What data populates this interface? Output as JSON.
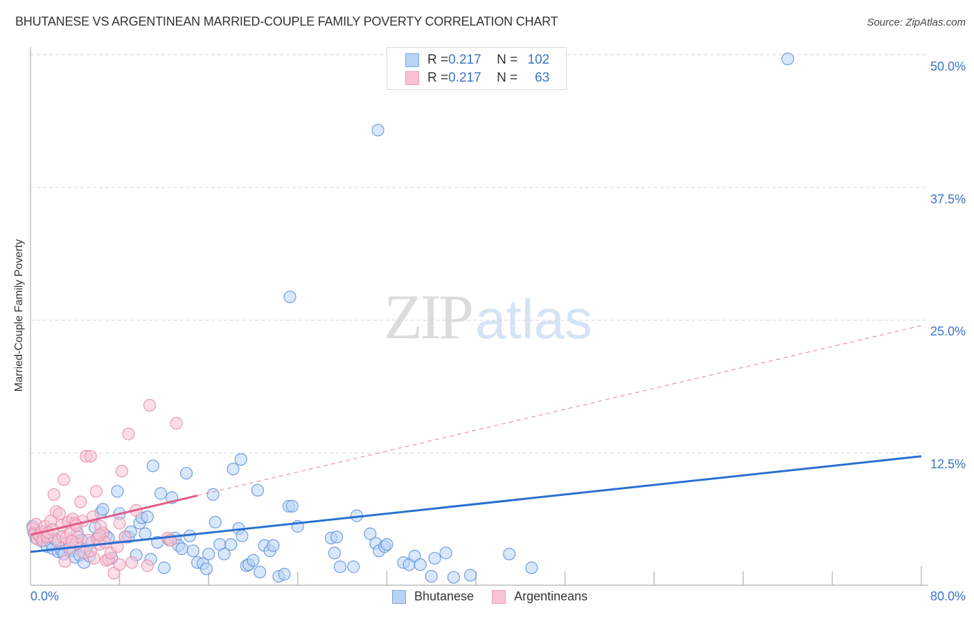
{
  "header": {
    "title": "BHUTANESE VS ARGENTINEAN MARRIED-COUPLE FAMILY POVERTY CORRELATION CHART",
    "source": "Source: ZipAtlas.com"
  },
  "watermark": {
    "zip": "ZIP",
    "atlas": "atlas"
  },
  "colors": {
    "bhutanese_fill": "#b8d3f5",
    "bhutanese_stroke": "#5b8fd9",
    "bhutanese_line": "#2a6fd0",
    "argentinean_fill": "#f8c3d3",
    "argentinean_stroke": "#e88aa6",
    "argentinean_line": "#e05c88",
    "tick_label": "#3b73c8",
    "grid": "#d6d6d6"
  },
  "legend_top": {
    "rows": [
      {
        "series": "Bhutanese",
        "r_label": "R = ",
        "r_value": "0.217",
        "n_label": "N = ",
        "n_value": "102"
      },
      {
        "series": "Argentineans",
        "r_label": "R = ",
        "r_value": "0.217",
        "n_label": "N = ",
        "n_value": "63"
      }
    ]
  },
  "legend_bottom": {
    "items": [
      {
        "label": "Bhutanese"
      },
      {
        "label": "Argentineans"
      }
    ]
  },
  "axes": {
    "y_label": "Married-Couple Family Poverty",
    "y_ticks": [
      "50.0%",
      "37.5%",
      "25.0%",
      "12.5%"
    ],
    "x_ticks": [
      "0.0%",
      "80.0%"
    ]
  },
  "chart_data": {
    "type": "scatter",
    "title": "BHUTANESE VS ARGENTINEAN MARRIED-COUPLE FAMILY POVERTY CORRELATION CHART",
    "xlabel": "",
    "ylabel": "Married-Couple Family Poverty",
    "xlim": [
      0,
      80
    ],
    "ylim": [
      0,
      50
    ],
    "x_tick_labels": [
      "0.0%",
      "80.0%"
    ],
    "y_tick_labels": [
      "12.5%",
      "25.0%",
      "37.5%",
      "50.0%"
    ],
    "grid": "horizontal dashed",
    "legend_position": "top-center and bottom",
    "series": [
      {
        "name": "Bhutanese",
        "R": 0.217,
        "N": 102,
        "trend": {
          "x": [
            0,
            80
          ],
          "y": [
            3.2,
            12.2
          ],
          "style": "solid"
        },
        "points": [
          [
            0.2,
            5.6
          ],
          [
            0.3,
            5.0
          ],
          [
            0.5,
            4.5
          ],
          [
            0.8,
            4.9
          ],
          [
            1.0,
            4.2
          ],
          [
            1.2,
            5.1
          ],
          [
            1.5,
            3.7
          ],
          [
            1.8,
            4.0
          ],
          [
            2.0,
            3.5
          ],
          [
            2.2,
            4.4
          ],
          [
            2.5,
            3.2
          ],
          [
            2.8,
            3.3
          ],
          [
            3.0,
            3.0
          ],
          [
            3.2,
            4.0
          ],
          [
            3.5,
            3.6
          ],
          [
            3.8,
            3.3
          ],
          [
            4.0,
            2.7
          ],
          [
            4.2,
            5.0
          ],
          [
            4.4,
            2.9
          ],
          [
            4.6,
            4.3
          ],
          [
            4.8,
            2.2
          ],
          [
            5.0,
            3.5
          ],
          [
            5.3,
            2.8
          ],
          [
            5.5,
            4.1
          ],
          [
            5.8,
            5.5
          ],
          [
            6.0,
            4.5
          ],
          [
            6.3,
            6.9
          ],
          [
            6.5,
            7.2
          ],
          [
            6.8,
            4.7
          ],
          [
            7.0,
            4.5
          ],
          [
            7.3,
            2.6
          ],
          [
            7.8,
            8.9
          ],
          [
            8.0,
            6.8
          ],
          [
            8.5,
            4.6
          ],
          [
            8.8,
            4.6
          ],
          [
            9.0,
            5.1
          ],
          [
            9.5,
            2.9
          ],
          [
            9.8,
            5.9
          ],
          [
            10.0,
            6.4
          ],
          [
            10.3,
            4.9
          ],
          [
            10.5,
            6.5
          ],
          [
            10.8,
            2.5
          ],
          [
            11.0,
            11.3
          ],
          [
            11.4,
            4.1
          ],
          [
            11.7,
            8.7
          ],
          [
            12.0,
            1.7
          ],
          [
            12.5,
            4.3
          ],
          [
            12.7,
            8.3
          ],
          [
            13.0,
            4.5
          ],
          [
            13.3,
            3.8
          ],
          [
            13.6,
            3.5
          ],
          [
            14.0,
            10.6
          ],
          [
            14.3,
            4.7
          ],
          [
            14.6,
            3.3
          ],
          [
            15.0,
            2.2
          ],
          [
            15.5,
            2.1
          ],
          [
            15.8,
            1.6
          ],
          [
            16.0,
            3.0
          ],
          [
            16.4,
            8.6
          ],
          [
            16.6,
            6.0
          ],
          [
            17.0,
            3.9
          ],
          [
            17.4,
            3.0
          ],
          [
            18.0,
            3.9
          ],
          [
            18.2,
            11.0
          ],
          [
            18.7,
            5.4
          ],
          [
            18.9,
            11.9
          ],
          [
            19.0,
            4.7
          ],
          [
            19.4,
            1.9
          ],
          [
            19.6,
            2.0
          ],
          [
            20.0,
            2.4
          ],
          [
            20.4,
            9.0
          ],
          [
            20.6,
            1.3
          ],
          [
            21.0,
            3.8
          ],
          [
            21.5,
            3.3
          ],
          [
            21.8,
            3.8
          ],
          [
            22.3,
            0.9
          ],
          [
            22.8,
            1.1
          ],
          [
            23.2,
            7.5
          ],
          [
            23.5,
            7.5
          ],
          [
            24.0,
            5.6
          ],
          [
            23.3,
            27.2
          ],
          [
            27.0,
            4.5
          ],
          [
            27.3,
            3.1
          ],
          [
            27.5,
            4.6
          ],
          [
            27.8,
            1.8
          ],
          [
            29.0,
            1.8
          ],
          [
            29.3,
            6.6
          ],
          [
            30.5,
            4.9
          ],
          [
            31.0,
            4.0
          ],
          [
            31.3,
            3.3
          ],
          [
            31.8,
            3.7
          ],
          [
            32.0,
            3.9
          ],
          [
            31.2,
            42.9
          ],
          [
            33.5,
            2.2
          ],
          [
            34.0,
            2.0
          ],
          [
            34.5,
            2.8
          ],
          [
            35.0,
            2.0
          ],
          [
            36.3,
            2.6
          ],
          [
            37.3,
            3.1
          ],
          [
            36.0,
            0.9
          ],
          [
            38.0,
            0.8
          ],
          [
            39.5,
            1.0
          ],
          [
            43.0,
            3.0
          ],
          [
            45.0,
            1.7
          ],
          [
            68.0,
            49.6
          ]
        ]
      },
      {
        "name": "Argentineans",
        "R": 0.217,
        "N": 63,
        "trend": {
          "x": [
            0,
            15
          ],
          "y": [
            4.8,
            8.5
          ],
          "style": "solid",
          "extended": {
            "x": [
              15,
              80
            ],
            "y": [
              8.5,
              24.5
            ],
            "style": "dashed"
          }
        },
        "points": [
          [
            0.2,
            5.4
          ],
          [
            0.4,
            4.9
          ],
          [
            0.5,
            5.8
          ],
          [
            0.6,
            4.4
          ],
          [
            0.8,
            4.7
          ],
          [
            1.0,
            5.1
          ],
          [
            1.1,
            4.3
          ],
          [
            1.3,
            5.6
          ],
          [
            1.5,
            4.6
          ],
          [
            1.6,
            5.0
          ],
          [
            1.8,
            6.1
          ],
          [
            2.0,
            5.3
          ],
          [
            2.1,
            8.6
          ],
          [
            2.3,
            7.0
          ],
          [
            2.5,
            4.2
          ],
          [
            2.6,
            6.8
          ],
          [
            2.8,
            5.7
          ],
          [
            2.9,
            4.6
          ],
          [
            3.0,
            10.0
          ],
          [
            3.1,
            2.3
          ],
          [
            3.2,
            4.5
          ],
          [
            3.4,
            6.0
          ],
          [
            3.5,
            3.5
          ],
          [
            3.6,
            4.9
          ],
          [
            3.8,
            6.3
          ],
          [
            4.0,
            5.9
          ],
          [
            4.1,
            4.0
          ],
          [
            4.3,
            4.6
          ],
          [
            4.5,
            7.9
          ],
          [
            4.7,
            6.1
          ],
          [
            4.8,
            3.1
          ],
          [
            5.0,
            12.2
          ],
          [
            5.2,
            4.3
          ],
          [
            5.4,
            12.2
          ],
          [
            5.6,
            6.5
          ],
          [
            5.7,
            2.6
          ],
          [
            5.9,
            8.9
          ],
          [
            6.0,
            4.4
          ],
          [
            6.2,
            3.9
          ],
          [
            6.3,
            5.6
          ],
          [
            6.5,
            5.0
          ],
          [
            6.7,
            4.1
          ],
          [
            6.8,
            2.4
          ],
          [
            7.0,
            2.5
          ],
          [
            7.2,
            3.1
          ],
          [
            7.5,
            1.2
          ],
          [
            7.8,
            3.7
          ],
          [
            8.0,
            2.0
          ],
          [
            8.2,
            10.8
          ],
          [
            8.5,
            4.6
          ],
          [
            8.8,
            14.3
          ],
          [
            9.1,
            2.2
          ],
          [
            9.5,
            7.1
          ],
          [
            10.5,
            1.9
          ],
          [
            8.0,
            5.9
          ],
          [
            6.2,
            4.8
          ],
          [
            5.4,
            3.3
          ],
          [
            12.3,
            4.5
          ],
          [
            12.6,
            4.3
          ],
          [
            10.7,
            17.0
          ],
          [
            13.1,
            15.3
          ],
          [
            4.1,
            5.7
          ],
          [
            3.7,
            4.2
          ]
        ]
      }
    ]
  }
}
